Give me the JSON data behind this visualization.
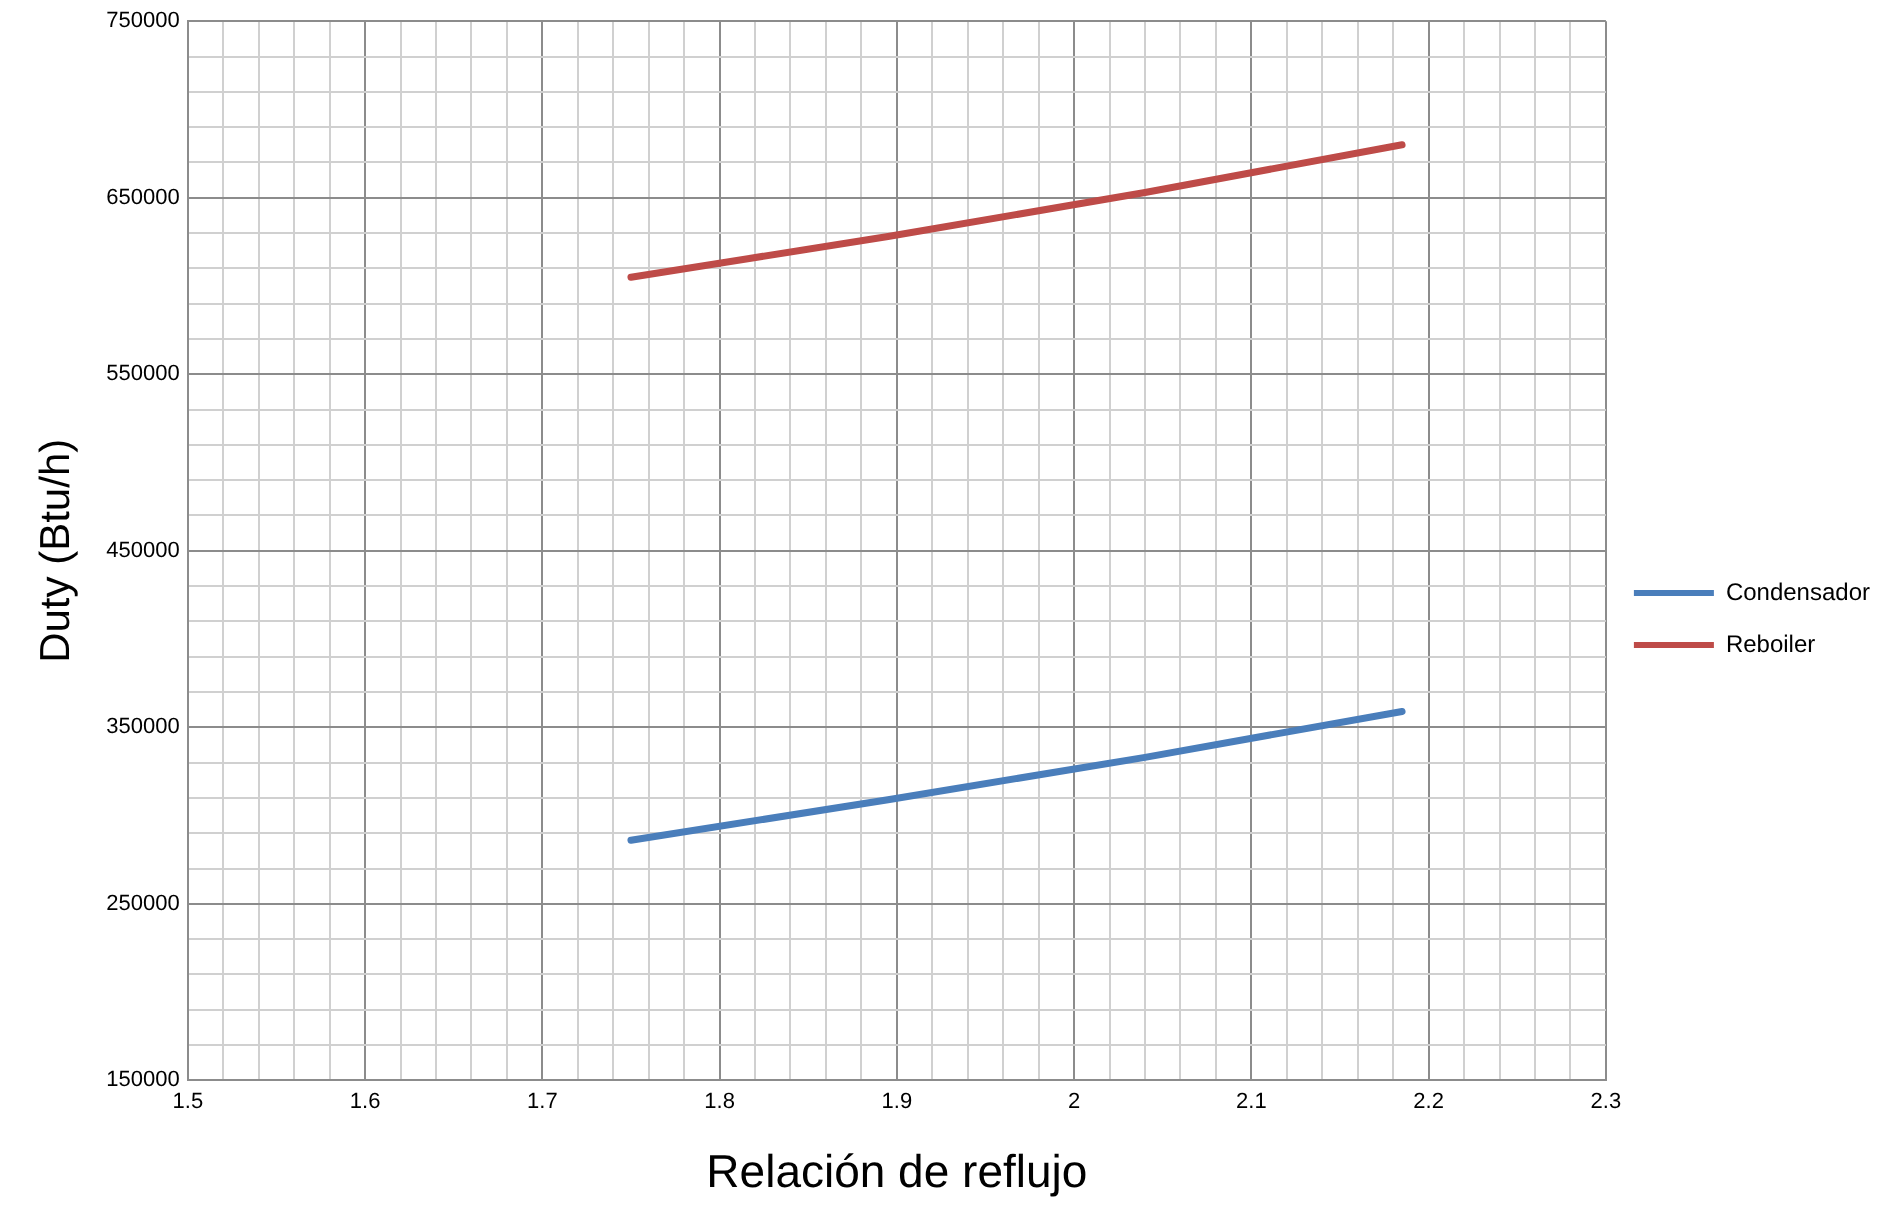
{
  "chart_data": {
    "type": "line",
    "xlabel": "Relación de reflujo",
    "ylabel": "Duty (Btu/h)",
    "x": [
      1.75,
      1.895,
      2.04,
      2.185
    ],
    "series": [
      {
        "name": "Condensador",
        "color": "#4a7ebb",
        "values": [
          286000,
          309000,
          333000,
          359000
        ]
      },
      {
        "name": "Reboiler",
        "color": "#be4b48",
        "values": [
          605000,
          628000,
          653000,
          680000
        ]
      }
    ],
    "xlim": [
      1.5,
      2.3
    ],
    "xticks": [
      1.5,
      {
        "value": 1.52,
        "label": null
      },
      {
        "value": 1.54,
        "label": null
      },
      {
        "value": 1.56,
        "label": null
      },
      {
        "value": 1.58,
        "label": null
      },
      1.6,
      {
        "value": 1.62,
        "label": null
      },
      {
        "value": 1.64,
        "label": null
      },
      {
        "value": 1.66,
        "label": null
      },
      {
        "value": 1.68,
        "label": null
      },
      1.7,
      {
        "value": 1.72,
        "label": null
      },
      {
        "value": 1.74,
        "label": null
      },
      {
        "value": 1.76,
        "label": null
      },
      {
        "value": 1.78,
        "label": null
      },
      1.8,
      {
        "value": 1.82,
        "label": null
      },
      {
        "value": 1.84,
        "label": null
      },
      {
        "value": 1.86,
        "label": null
      },
      {
        "value": 1.88,
        "label": null
      },
      1.9,
      {
        "value": 1.92,
        "label": null
      },
      {
        "value": 1.94,
        "label": null
      },
      {
        "value": 1.96,
        "label": null
      },
      {
        "value": 1.98,
        "label": null
      },
      2,
      {
        "value": 2.02,
        "label": null
      },
      {
        "value": 2.04,
        "label": null
      },
      {
        "value": 2.06,
        "label": null
      },
      {
        "value": 2.08,
        "label": null
      },
      2.1,
      {
        "value": 2.12,
        "label": null
      },
      {
        "value": 2.14,
        "label": null
      },
      {
        "value": 2.16,
        "label": null
      },
      {
        "value": 2.18,
        "label": null
      },
      2.2,
      {
        "value": 2.22,
        "label": null
      },
      {
        "value": 2.24,
        "label": null
      },
      {
        "value": 2.26,
        "label": null
      },
      {
        "value": 2.28,
        "label": null
      },
      2.3
    ],
    "ylim": [
      150000,
      750000
    ],
    "yticks": [
      150000,
      {
        "value": 170000,
        "label": null
      },
      {
        "value": 190000,
        "label": null
      },
      {
        "value": 210000,
        "label": null
      },
      {
        "value": 230000,
        "label": null
      },
      250000,
      {
        "value": 270000,
        "label": null
      },
      {
        "value": 290000,
        "label": null
      },
      {
        "value": 310000,
        "label": null
      },
      {
        "value": 330000,
        "label": null
      },
      350000,
      {
        "value": 370000,
        "label": null
      },
      {
        "value": 390000,
        "label": null
      },
      {
        "value": 410000,
        "label": null
      },
      {
        "value": 430000,
        "label": null
      },
      450000,
      {
        "value": 470000,
        "label": null
      },
      {
        "value": 490000,
        "label": null
      },
      {
        "value": 510000,
        "label": null
      },
      {
        "value": 530000,
        "label": null
      },
      550000,
      {
        "value": 570000,
        "label": null
      },
      {
        "value": 590000,
        "label": null
      },
      {
        "value": 610000,
        "label": null
      },
      {
        "value": 630000,
        "label": null
      },
      650000,
      {
        "value": 670000,
        "label": null
      },
      {
        "value": 690000,
        "label": null
      },
      {
        "value": 710000,
        "label": null
      },
      {
        "value": 730000,
        "label": null
      },
      750000
    ],
    "grid": true,
    "legend": "right",
    "marker": "none",
    "line_style": "solid"
  }
}
